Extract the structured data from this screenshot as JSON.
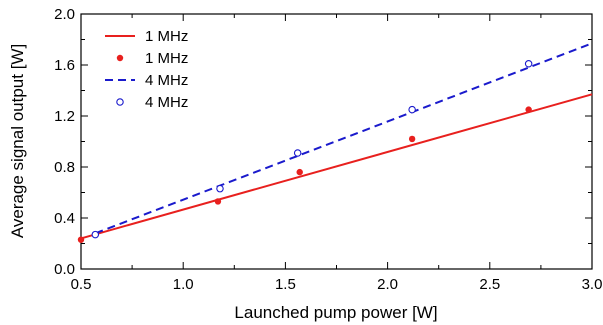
{
  "chart_data": {
    "type": "scatter",
    "xlabel": "Launched pump power [W]",
    "ylabel": "Average signal output [W]",
    "xlim": [
      0.5,
      3.0
    ],
    "ylim": [
      0.0,
      2.0
    ],
    "xticks": [
      0.5,
      1.0,
      1.5,
      2.0,
      2.5,
      3.0
    ],
    "yticks": [
      0.0,
      0.4,
      0.8,
      1.2,
      1.6,
      2.0
    ],
    "xtick_labels": [
      "0.5",
      "1.0",
      "1.5",
      "2.0",
      "2.5",
      "3.0"
    ],
    "ytick_labels": [
      "0.0",
      "0.4",
      "0.8",
      "1.2",
      "1.6",
      "2.0"
    ],
    "grid": false,
    "legend_position": "top-left",
    "series": [
      {
        "name": "1 MHz",
        "kind": "line",
        "style": "solid",
        "color": "#e8201e",
        "x": [
          0.5,
          3.0
        ],
        "y": [
          0.24,
          1.37
        ]
      },
      {
        "name": "1 MHz",
        "kind": "scatter",
        "marker": "filled-circle",
        "color": "#e8201e",
        "x": [
          0.5,
          1.17,
          1.57,
          2.12,
          2.69
        ],
        "y": [
          0.23,
          0.53,
          0.76,
          1.02,
          1.25
        ]
      },
      {
        "name": "4 MHz",
        "kind": "line",
        "style": "dashed",
        "color": "#1a1acc",
        "x": [
          0.57,
          3.0
        ],
        "y": [
          0.28,
          1.77
        ]
      },
      {
        "name": "4 MHz",
        "kind": "scatter",
        "marker": "open-circle",
        "color": "#1a1acc",
        "x": [
          0.57,
          1.18,
          1.56,
          2.12,
          2.69
        ],
        "y": [
          0.27,
          0.63,
          0.91,
          1.25,
          1.61
        ]
      }
    ]
  }
}
